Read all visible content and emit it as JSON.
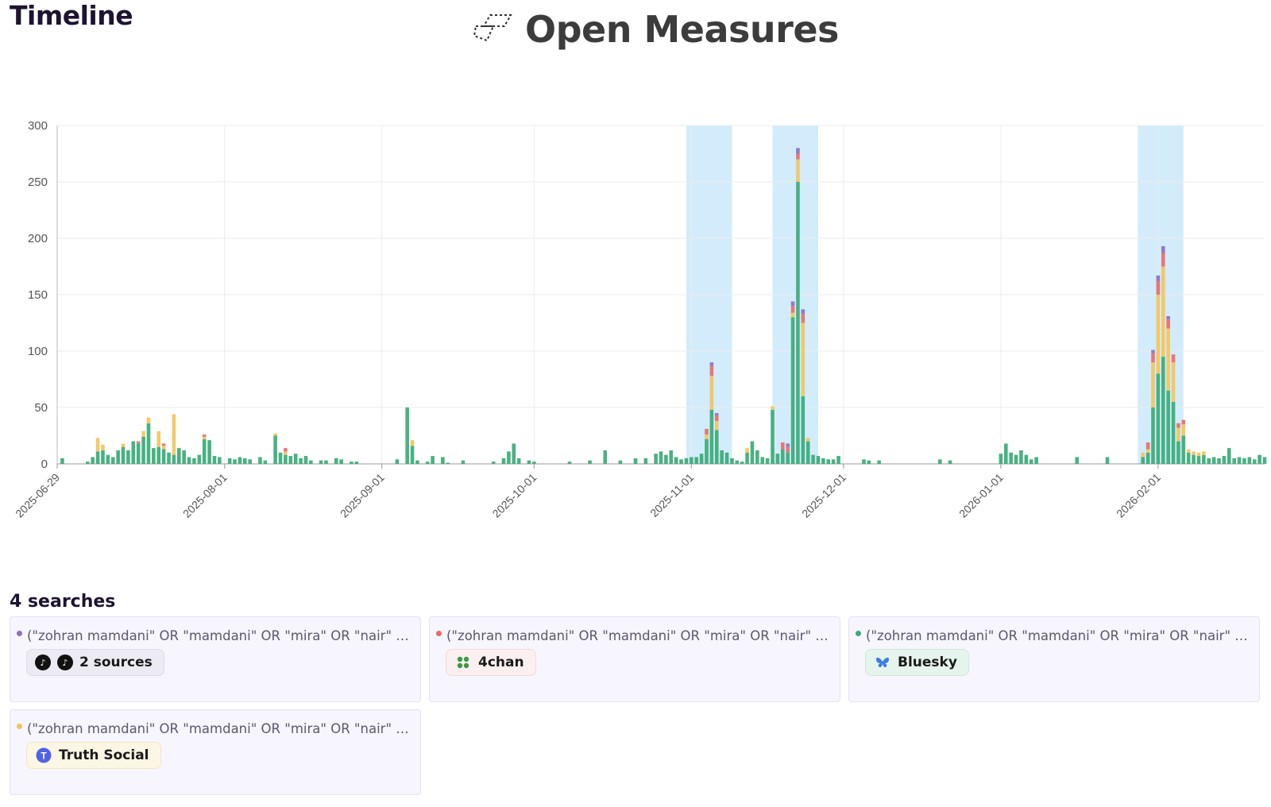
{
  "header": {
    "title": "Timeline",
    "brand": "Open Measures"
  },
  "colors": {
    "purple": "#8e6fbf",
    "red": "#e96b6b",
    "green": "#3aaa78",
    "yellow": "#f3c45e",
    "highlight": "#d3ecfb"
  },
  "chart_data": {
    "type": "bar",
    "stacked": true,
    "ylim": [
      0,
      300
    ],
    "yticks": [
      0,
      50,
      100,
      150,
      200,
      250,
      300
    ],
    "x_range": [
      "2025-06-29",
      "2026-02-22"
    ],
    "xticks": [
      "2025-06-29",
      "2025-08-01",
      "2025-09-01",
      "2025-10-01",
      "2025-11-01",
      "2025-12-01",
      "2026-01-01",
      "2026-02-01"
    ],
    "grid": true,
    "highlights": [
      [
        "2025-10-31",
        "2025-11-09"
      ],
      [
        "2025-11-17",
        "2025-11-26"
      ],
      [
        "2026-01-28",
        "2026-02-06"
      ]
    ],
    "series": [
      {
        "color": "#3aaa78",
        "points": [
          [
            "2025-06-30",
            5
          ],
          [
            "2025-07-05",
            2
          ],
          [
            "2025-07-06",
            6
          ],
          [
            "2025-07-07",
            11
          ],
          [
            "2025-07-08",
            12
          ],
          [
            "2025-07-09",
            8
          ],
          [
            "2025-07-10",
            6
          ],
          [
            "2025-07-11",
            12
          ],
          [
            "2025-07-12",
            15
          ],
          [
            "2025-07-13",
            12
          ],
          [
            "2025-07-14",
            20
          ],
          [
            "2025-07-15",
            18
          ],
          [
            "2025-07-16",
            24
          ],
          [
            "2025-07-17",
            36
          ],
          [
            "2025-07-18",
            14
          ],
          [
            "2025-07-19",
            15
          ],
          [
            "2025-07-20",
            13
          ],
          [
            "2025-07-21",
            10
          ],
          [
            "2025-07-22",
            8
          ],
          [
            "2025-07-23",
            14
          ],
          [
            "2025-07-24",
            12
          ],
          [
            "2025-07-25",
            6
          ],
          [
            "2025-07-26",
            5
          ],
          [
            "2025-07-27",
            8
          ],
          [
            "2025-07-28",
            22
          ],
          [
            "2025-07-29",
            21
          ],
          [
            "2025-07-30",
            7
          ],
          [
            "2025-07-31",
            6
          ],
          [
            "2025-08-02",
            5
          ],
          [
            "2025-08-03",
            4
          ],
          [
            "2025-08-04",
            6
          ],
          [
            "2025-08-05",
            5
          ],
          [
            "2025-08-06",
            4
          ],
          [
            "2025-08-08",
            6
          ],
          [
            "2025-08-09",
            3
          ],
          [
            "2025-08-11",
            25
          ],
          [
            "2025-08-12",
            10
          ],
          [
            "2025-08-13",
            8
          ],
          [
            "2025-08-14",
            7
          ],
          [
            "2025-08-15",
            9
          ],
          [
            "2025-08-16",
            5
          ],
          [
            "2025-08-17",
            7
          ],
          [
            "2025-08-18",
            3
          ],
          [
            "2025-08-20",
            3
          ],
          [
            "2025-08-21",
            3
          ],
          [
            "2025-08-23",
            5
          ],
          [
            "2025-08-24",
            4
          ],
          [
            "2025-08-26",
            2
          ],
          [
            "2025-08-27",
            2
          ],
          [
            "2025-09-04",
            4
          ],
          [
            "2025-09-06",
            50
          ],
          [
            "2025-09-07",
            16
          ],
          [
            "2025-09-08",
            3
          ],
          [
            "2025-09-10",
            2
          ],
          [
            "2025-09-11",
            7
          ],
          [
            "2025-09-13",
            6
          ],
          [
            "2025-09-14",
            1
          ],
          [
            "2025-09-17",
            3
          ],
          [
            "2025-09-23",
            2
          ],
          [
            "2025-09-25",
            5
          ],
          [
            "2025-09-26",
            11
          ],
          [
            "2025-09-27",
            18
          ],
          [
            "2025-09-28",
            5
          ],
          [
            "2025-09-30",
            3
          ],
          [
            "2025-10-01",
            2
          ],
          [
            "2025-10-08",
            2
          ],
          [
            "2025-10-12",
            3
          ],
          [
            "2025-10-15",
            12
          ],
          [
            "2025-10-18",
            3
          ],
          [
            "2025-10-21",
            5
          ],
          [
            "2025-10-23",
            5
          ],
          [
            "2025-10-25",
            9
          ],
          [
            "2025-10-26",
            11
          ],
          [
            "2025-10-27",
            8
          ],
          [
            "2025-10-28",
            12
          ],
          [
            "2025-10-29",
            6
          ],
          [
            "2025-10-30",
            4
          ],
          [
            "2025-10-31",
            5
          ],
          [
            "2025-11-01",
            6
          ],
          [
            "2025-11-02",
            6
          ],
          [
            "2025-11-03",
            9
          ],
          [
            "2025-11-04",
            22
          ],
          [
            "2025-11-05",
            48
          ],
          [
            "2025-11-06",
            30
          ],
          [
            "2025-11-07",
            12
          ],
          [
            "2025-11-08",
            10
          ],
          [
            "2025-11-09",
            5
          ],
          [
            "2025-11-10",
            3
          ],
          [
            "2025-11-11",
            2
          ],
          [
            "2025-11-12",
            10
          ],
          [
            "2025-11-13",
            20
          ],
          [
            "2025-11-14",
            12
          ],
          [
            "2025-11-15",
            6
          ],
          [
            "2025-11-16",
            5
          ],
          [
            "2025-11-17",
            48
          ],
          [
            "2025-11-18",
            9
          ],
          [
            "2025-11-19",
            13
          ],
          [
            "2025-11-20",
            10
          ],
          [
            "2025-11-21",
            130
          ],
          [
            "2025-11-22",
            250
          ],
          [
            "2025-11-23",
            60
          ],
          [
            "2025-11-24",
            20
          ],
          [
            "2025-11-25",
            8
          ],
          [
            "2025-11-26",
            7
          ],
          [
            "2025-11-27",
            5
          ],
          [
            "2025-11-28",
            4
          ],
          [
            "2025-11-29",
            4
          ],
          [
            "2025-11-30",
            7
          ],
          [
            "2025-12-05",
            4
          ],
          [
            "2025-12-06",
            3
          ],
          [
            "2025-12-08",
            3
          ],
          [
            "2025-12-20",
            4
          ],
          [
            "2025-12-22",
            3
          ],
          [
            "2026-01-01",
            9
          ],
          [
            "2026-01-02",
            18
          ],
          [
            "2026-01-03",
            10
          ],
          [
            "2026-01-04",
            8
          ],
          [
            "2026-01-05",
            12
          ],
          [
            "2026-01-06",
            8
          ],
          [
            "2026-01-07",
            4
          ],
          [
            "2026-01-08",
            6
          ],
          [
            "2026-01-16",
            6
          ],
          [
            "2026-01-22",
            6
          ],
          [
            "2026-01-29",
            6
          ],
          [
            "2026-01-30",
            10
          ],
          [
            "2026-01-31",
            50
          ],
          [
            "2026-02-01",
            80
          ],
          [
            "2026-02-02",
            95
          ],
          [
            "2026-02-03",
            65
          ],
          [
            "2026-02-04",
            55
          ],
          [
            "2026-02-05",
            20
          ],
          [
            "2026-02-06",
            25
          ],
          [
            "2026-02-07",
            10
          ],
          [
            "2026-02-08",
            8
          ],
          [
            "2026-02-09",
            7
          ],
          [
            "2026-02-10",
            8
          ],
          [
            "2026-02-11",
            5
          ],
          [
            "2026-02-12",
            6
          ],
          [
            "2026-02-13",
            5
          ],
          [
            "2026-02-14",
            7
          ],
          [
            "2026-02-15",
            14
          ],
          [
            "2026-02-16",
            5
          ],
          [
            "2026-02-17",
            6
          ],
          [
            "2026-02-18",
            5
          ],
          [
            "2026-02-19",
            6
          ],
          [
            "2026-02-20",
            4
          ],
          [
            "2026-02-21",
            8
          ],
          [
            "2026-02-22",
            6
          ]
        ]
      },
      {
        "color": "#f3c45e",
        "points": [
          [
            "2025-07-07",
            12
          ],
          [
            "2025-07-08",
            5
          ],
          [
            "2025-07-12",
            3
          ],
          [
            "2025-07-16",
            5
          ],
          [
            "2025-07-17",
            5
          ],
          [
            "2025-07-19",
            14
          ],
          [
            "2025-07-20",
            3
          ],
          [
            "2025-07-22",
            36
          ],
          [
            "2025-07-28",
            2
          ],
          [
            "2025-08-11",
            2
          ],
          [
            "2025-08-13",
            3
          ],
          [
            "2025-09-07",
            5
          ],
          [
            "2025-11-04",
            4
          ],
          [
            "2025-11-05",
            30
          ],
          [
            "2025-11-06",
            8
          ],
          [
            "2025-11-12",
            4
          ],
          [
            "2025-11-17",
            3
          ],
          [
            "2025-11-21",
            4
          ],
          [
            "2025-11-22",
            20
          ],
          [
            "2025-11-23",
            65
          ],
          [
            "2025-11-24",
            3
          ],
          [
            "2026-01-29",
            4
          ],
          [
            "2026-01-30",
            3
          ],
          [
            "2026-01-31",
            40
          ],
          [
            "2026-02-01",
            70
          ],
          [
            "2026-02-02",
            80
          ],
          [
            "2026-02-03",
            55
          ],
          [
            "2026-02-04",
            35
          ],
          [
            "2026-02-05",
            12
          ],
          [
            "2026-02-06",
            10
          ],
          [
            "2026-02-07",
            3
          ],
          [
            "2026-02-08",
            3
          ],
          [
            "2026-02-09",
            3
          ],
          [
            "2026-02-10",
            3
          ]
        ]
      },
      {
        "color": "#e96b6b",
        "points": [
          [
            "2025-07-15",
            2
          ],
          [
            "2025-07-20",
            2
          ],
          [
            "2025-07-28",
            2
          ],
          [
            "2025-08-13",
            3
          ],
          [
            "2025-11-04",
            5
          ],
          [
            "2025-11-05",
            9
          ],
          [
            "2025-11-06",
            5
          ],
          [
            "2025-11-19",
            6
          ],
          [
            "2025-11-20",
            5
          ],
          [
            "2025-11-21",
            6
          ],
          [
            "2025-11-22",
            5
          ],
          [
            "2025-11-23",
            8
          ],
          [
            "2026-01-30",
            6
          ],
          [
            "2026-01-31",
            8
          ],
          [
            "2026-02-01",
            12
          ],
          [
            "2026-02-02",
            12
          ],
          [
            "2026-02-03",
            8
          ],
          [
            "2026-02-04",
            7
          ],
          [
            "2026-02-05",
            4
          ],
          [
            "2026-02-06",
            4
          ]
        ]
      },
      {
        "color": "#8e6fbf",
        "points": [
          [
            "2025-11-05",
            3
          ],
          [
            "2025-11-06",
            2
          ],
          [
            "2025-11-20",
            3
          ],
          [
            "2025-11-21",
            4
          ],
          [
            "2025-11-22",
            5
          ],
          [
            "2025-11-23",
            4
          ],
          [
            "2026-01-31",
            3
          ],
          [
            "2026-02-01",
            5
          ],
          [
            "2026-02-02",
            6
          ],
          [
            "2026-02-03",
            3
          ]
        ]
      }
    ]
  },
  "searches": {
    "title": "4 searches",
    "items": [
      {
        "dot": "#8e6fbf",
        "query": "(\"zohran mamdani\" OR \"mamdani\" OR \"mira\" OR \"nair\" O...",
        "source": "2 sources",
        "chip_bg": "#ecebf3",
        "chip_border": "#dcdbe8",
        "icon": "tiktok-icon"
      },
      {
        "dot": "#e96b6b",
        "query": "(\"zohran mamdani\" OR \"mamdani\" OR \"mira\" OR \"nair\" O...",
        "source": "4chan",
        "chip_bg": "#fcefef",
        "chip_border": "#f4d9d9",
        "icon": "clover-icon"
      },
      {
        "dot": "#3aaa78",
        "query": "(\"zohran mamdani\" OR \"mamdani\" OR \"mira\" OR \"nair\" O...",
        "source": "Bluesky",
        "chip_bg": "#e5f4ec",
        "chip_border": "#cde8d9",
        "icon": "butterfly-icon"
      },
      {
        "dot": "#f3c45e",
        "query": "(\"zohran mamdani\" OR \"mamdani\" OR \"mira\" OR \"nair\" O...",
        "source": "Truth Social",
        "chip_bg": "#fcf6e4",
        "chip_border": "#f1e6c3",
        "icon": "truth-social-icon"
      }
    ]
  }
}
